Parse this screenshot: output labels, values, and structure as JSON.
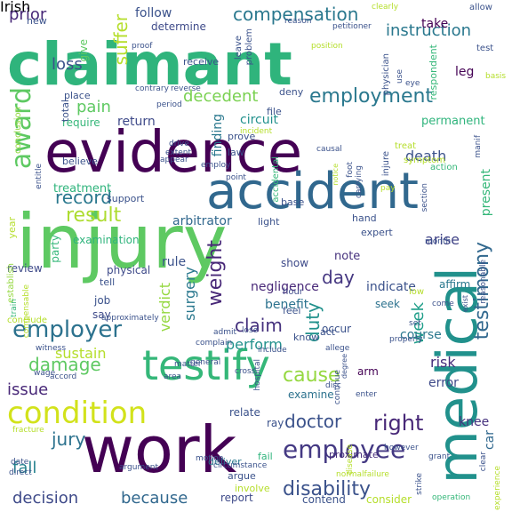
{
  "colors": {
    "background": "#ffffff"
  },
  "words": [
    {
      "text": "claimant",
      "color": "#2fb47c"
    },
    {
      "text": "evidence",
      "color": "#440154"
    },
    {
      "text": "injury",
      "color": "#5ec962"
    },
    {
      "text": "accident",
      "color": "#31688e"
    },
    {
      "text": "work",
      "color": "#440154"
    },
    {
      "text": "medical",
      "color": "#21918c"
    },
    {
      "text": "testify",
      "color": "#35b779"
    },
    {
      "text": "condition",
      "color": "#d2e21b"
    },
    {
      "text": "employment",
      "color": "#2a788e"
    },
    {
      "text": "employee",
      "color": "#443983"
    },
    {
      "text": "employer",
      "color": "#2c728e"
    },
    {
      "text": "compensation",
      "color": "#2a788e"
    },
    {
      "text": "result",
      "color": "#addc30"
    },
    {
      "text": "award",
      "color": "#5ec962"
    },
    {
      "text": "disability",
      "color": "#3b528b"
    },
    {
      "text": "testimony",
      "color": "#31688e"
    },
    {
      "text": "decision",
      "color": "#3e4a89"
    },
    {
      "text": "because",
      "color": "#31688e"
    },
    {
      "text": "decedent",
      "color": "#7ad151"
    },
    {
      "text": "cause",
      "color": "#95d840"
    },
    {
      "text": "right",
      "color": "#482878"
    },
    {
      "text": "instruction",
      "color": "#2a788e"
    },
    {
      "text": "suffer",
      "color": "#b5de2b"
    },
    {
      "text": "record",
      "color": "#2a788e"
    },
    {
      "text": "damage",
      "color": "#5ec962"
    },
    {
      "text": "claim",
      "color": "#46327e"
    },
    {
      "text": "doctor",
      "color": "#3b528b"
    },
    {
      "text": "jury",
      "color": "#2c728e"
    },
    {
      "text": "fall",
      "color": "#26828e"
    },
    {
      "text": "issue",
      "color": "#482878"
    },
    {
      "text": "loss",
      "color": "#3b528b"
    },
    {
      "text": "pain",
      "color": "#5ec962"
    },
    {
      "text": "prior",
      "color": "#482878"
    },
    {
      "text": "day",
      "color": "#453781"
    },
    {
      "text": "duty",
      "color": "#21918c"
    },
    {
      "text": "weight",
      "color": "#482878"
    },
    {
      "text": "week",
      "color": "#1f9e89"
    },
    {
      "text": "sustain",
      "color": "#b5de2b"
    },
    {
      "text": "follow",
      "color": "#3b528b"
    },
    {
      "text": "arbitrator",
      "color": "#31688e"
    },
    {
      "text": "surgery",
      "color": "#2a788e"
    },
    {
      "text": "perform",
      "color": "#21918c"
    },
    {
      "text": "present",
      "color": "#35b779"
    },
    {
      "text": "arise",
      "color": "#414487"
    },
    {
      "text": "return",
      "color": "#3e4a89"
    },
    {
      "text": "treatment",
      "color": "#2fb47c"
    },
    {
      "text": "circuit",
      "color": "#21918c"
    },
    {
      "text": "verdict",
      "color": "#95d840"
    },
    {
      "text": "benefit",
      "color": "#2c728e"
    },
    {
      "text": "finding",
      "color": "#2a788e"
    },
    {
      "text": "leg",
      "color": "#440154"
    },
    {
      "text": "take",
      "color": "#440154"
    },
    {
      "text": "permanent",
      "color": "#2fb47c"
    },
    {
      "text": "death",
      "color": "#3b528b"
    },
    {
      "text": "course",
      "color": "#2a788e"
    },
    {
      "text": "risk",
      "color": "#472d7b"
    },
    {
      "text": "error",
      "color": "#3e4a89"
    },
    {
      "text": "knee",
      "color": "#46327e"
    },
    {
      "text": "car",
      "color": "#31688e"
    },
    {
      "text": "arm",
      "color": "#440154"
    },
    {
      "text": "indicate",
      "color": "#3b528b"
    },
    {
      "text": "negligence",
      "color": "#482878"
    },
    {
      "text": "examine",
      "color": "#2c728e"
    },
    {
      "text": "report",
      "color": "#3e4a89"
    },
    {
      "text": "contend",
      "color": "#3b528b"
    },
    {
      "text": "consider",
      "color": "#b5de2b"
    },
    {
      "text": "proximate",
      "color": "#472d7b"
    },
    {
      "text": "deliver",
      "color": "#2a788e"
    },
    {
      "text": "fail",
      "color": "#2fb47c"
    },
    {
      "text": "argue",
      "color": "#3b528b"
    },
    {
      "text": "involve",
      "color": "#b5de2b"
    },
    {
      "text": "show",
      "color": "#3e4a89"
    },
    {
      "text": "rule",
      "color": "#3b528b"
    },
    {
      "text": "note",
      "color": "#46327e"
    },
    {
      "text": "ray",
      "color": "#3b528b"
    },
    {
      "text": "relate",
      "color": "#3b528b"
    },
    {
      "text": "seek",
      "color": "#2c728e"
    },
    {
      "text": "occur",
      "color": "#3b528b"
    },
    {
      "text": "affirm",
      "color": "#2a788e"
    },
    {
      "text": "review",
      "color": "#3e4a89"
    },
    {
      "text": "year",
      "color": "#b5de2b"
    },
    {
      "text": "physical",
      "color": "#3e4a89"
    },
    {
      "text": "job",
      "color": "#3b528b"
    },
    {
      "text": "say",
      "color": "#3e4a89"
    },
    {
      "text": "tell",
      "color": "#3b528b"
    },
    {
      "text": "know",
      "color": "#3b528b"
    },
    {
      "text": "act",
      "color": "#3b528b"
    },
    {
      "text": "hour",
      "color": "#3e4a89"
    },
    {
      "text": "feel",
      "color": "#3b528b"
    },
    {
      "text": "light",
      "color": "#3b528b"
    },
    {
      "text": "expert",
      "color": "#3b528b"
    },
    {
      "text": "hand",
      "color": "#3b528b"
    },
    {
      "text": "law",
      "color": "#3b528b"
    },
    {
      "text": "prove",
      "color": "#3b528b"
    },
    {
      "text": "file",
      "color": "#3b528b"
    },
    {
      "text": "deny",
      "color": "#3b528b"
    },
    {
      "text": "base",
      "color": "#3b528b"
    },
    {
      "text": "require",
      "color": "#35b779"
    },
    {
      "text": "place",
      "color": "#3b528b"
    },
    {
      "text": "total",
      "color": "#3b528b"
    },
    {
      "text": "believe",
      "color": "#3b528b"
    },
    {
      "text": "support",
      "color": "#3b528b"
    },
    {
      "text": "examination",
      "color": "#2fb47c"
    },
    {
      "text": "party",
      "color": "#35b779"
    },
    {
      "text": "establish",
      "color": "#95d840"
    },
    {
      "text": "conclusion",
      "color": "#95d840"
    },
    {
      "text": "give",
      "color": "#5ec962"
    },
    {
      "text": "determine",
      "color": "#3e4a89"
    },
    {
      "text": "receive",
      "color": "#3b528b"
    },
    {
      "text": "leave",
      "color": "#3b528b"
    },
    {
      "text": "problem",
      "color": "#3b528b"
    },
    {
      "text": "reason",
      "color": "#3b528b"
    },
    {
      "text": "petitioner",
      "color": "#3b528b"
    },
    {
      "text": "position",
      "color": "#b5de2b"
    },
    {
      "text": "clearly",
      "color": "#b5de2b"
    },
    {
      "text": "allow",
      "color": "#3b528b"
    },
    {
      "text": "physician",
      "color": "#3b528b"
    },
    {
      "text": "use",
      "color": "#3b528b"
    },
    {
      "text": "respondent",
      "color": "#35b779"
    },
    {
      "text": "test",
      "color": "#3b528b"
    },
    {
      "text": "basis",
      "color": "#b5de2b"
    },
    {
      "text": "eye",
      "color": "#3b528b"
    },
    {
      "text": "proof",
      "color": "#3b528b"
    },
    {
      "text": "new",
      "color": "#3b528b"
    },
    {
      "text": "contrary",
      "color": "#3b528b"
    },
    {
      "text": "reverse",
      "color": "#3b528b"
    },
    {
      "text": "period",
      "color": "#3b528b"
    },
    {
      "text": "incident",
      "color": "#b5de2b"
    },
    {
      "text": "drive",
      "color": "#3b528b"
    },
    {
      "text": "extent",
      "color": "#3b528b"
    },
    {
      "text": "appear",
      "color": "#3b528b"
    },
    {
      "text": "accidental",
      "color": "#35b779"
    },
    {
      "text": "causal",
      "color": "#3b528b"
    },
    {
      "text": "injure",
      "color": "#3b528b"
    },
    {
      "text": "treat",
      "color": "#b5de2b"
    },
    {
      "text": "symptom",
      "color": "#b5de2b"
    },
    {
      "text": "action",
      "color": "#35b779"
    },
    {
      "text": "manif",
      "color": "#3b528b"
    },
    {
      "text": "entitle",
      "color": "#3b528b"
    },
    {
      "text": "employ",
      "color": "#3b528b"
    },
    {
      "text": "point",
      "color": "#3b528b"
    },
    {
      "text": "notice",
      "color": "#b5de2b"
    },
    {
      "text": "foot",
      "color": "#3b528b"
    },
    {
      "text": "carrying",
      "color": "#3b528b"
    },
    {
      "text": "pay",
      "color": "#b5de2b"
    },
    {
      "text": "section",
      "color": "#3b528b"
    },
    {
      "text": "month",
      "color": "#3b528b"
    },
    {
      "text": "reasonable",
      "color": "#3b528b"
    },
    {
      "text": "low",
      "color": "#b5de2b"
    },
    {
      "text": "come",
      "color": "#3b528b"
    },
    {
      "text": "set",
      "color": "#3b528b"
    },
    {
      "text": "properly",
      "color": "#3b528b"
    },
    {
      "text": "exist",
      "color": "#3b528b"
    },
    {
      "text": "approximately",
      "color": "#3b528b"
    },
    {
      "text": "witness",
      "color": "#3b528b"
    },
    {
      "text": "complain",
      "color": "#3b528b"
    },
    {
      "text": "general",
      "color": "#3b528b"
    },
    {
      "text": "admit",
      "color": "#3b528b"
    },
    {
      "text": "lose",
      "color": "#3b528b"
    },
    {
      "text": "train",
      "color": "#35b779"
    },
    {
      "text": "compensable",
      "color": "#b5de2b"
    },
    {
      "text": "conclude",
      "color": "#b5de2b"
    },
    {
      "text": "fracture",
      "color": "#b5de2b"
    },
    {
      "text": "wage",
      "color": "#3b528b"
    },
    {
      "text": "accord",
      "color": "#3b528b"
    },
    {
      "text": "matter",
      "color": "#3b528b"
    },
    {
      "text": "area",
      "color": "#3b528b"
    },
    {
      "text": "cross",
      "color": "#3b528b"
    },
    {
      "text": "include",
      "color": "#3b528b"
    },
    {
      "text": "allege",
      "color": "#3b528b"
    },
    {
      "text": "degree",
      "color": "#3b528b"
    },
    {
      "text": "continue",
      "color": "#3b528b"
    },
    {
      "text": "enter",
      "color": "#3b528b"
    },
    {
      "text": "disc",
      "color": "#3b528b"
    },
    {
      "text": "however",
      "color": "#3b528b"
    },
    {
      "text": "grant",
      "color": "#3b528b"
    },
    {
      "text": "clear",
      "color": "#3b528b"
    },
    {
      "text": "date",
      "color": "#3b528b"
    },
    {
      "text": "argument",
      "color": "#3b528b"
    },
    {
      "text": "circumstance",
      "color": "#3b528b"
    },
    {
      "text": "direct",
      "color": "#3b528b"
    },
    {
      "text": "normalfailure",
      "color": "#b5de2b"
    },
    {
      "text": "disease",
      "color": "#b5de2b"
    },
    {
      "text": "strike",
      "color": "#3b528b"
    },
    {
      "text": "operation",
      "color": "#35b779"
    },
    {
      "text": "experience",
      "color": "#b5de2b"
    },
    {
      "text": "hospital",
      "color": "#3b528b"
    },
    {
      "text": "motion",
      "color": "#3b528b"
    },
    {
      "text": "Irish",
      "color": "#3b528b"
    }
  ]
}
